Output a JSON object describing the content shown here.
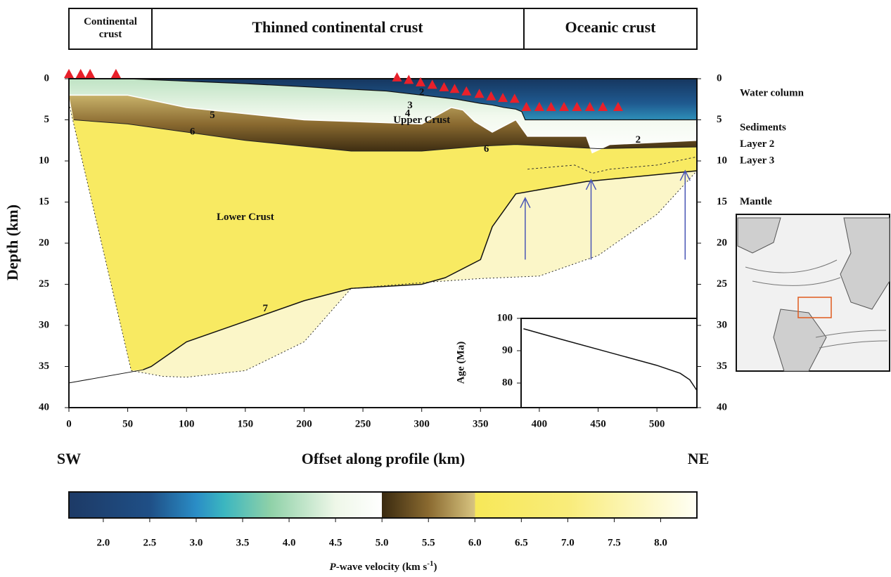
{
  "chart_data": {
    "type": "velocity-section",
    "domains": [
      "Continental crust",
      "Thinned continental crust",
      "Oceanic crust"
    ],
    "xlabel": "Offset along profile (km)",
    "ylabel": "Depth (km)",
    "left_end": "SW",
    "right_end": "NE",
    "xlim": [
      0,
      534
    ],
    "ylim": [
      0,
      40
    ],
    "xticks": [
      0,
      50,
      100,
      150,
      200,
      250,
      300,
      350,
      400,
      450,
      500
    ],
    "yticks": [
      0,
      5,
      10,
      15,
      20,
      25,
      30,
      35,
      40
    ],
    "layer_labels": [
      "Water column",
      "Sediments",
      "Layer 2",
      "Layer 3",
      "Mantle"
    ],
    "region_labels": [
      "Upper Crust",
      "Lower Crust"
    ],
    "contour_labels": [
      "2",
      "3",
      "4",
      "5",
      "6",
      "6",
      "7",
      "2"
    ],
    "seafloor": {
      "x": [
        50,
        150,
        270,
        330,
        350,
        360,
        370,
        380,
        385,
        388,
        534
      ],
      "depth": [
        0,
        0.6,
        1.5,
        2.5,
        3,
        3.2,
        3.5,
        3.7,
        4,
        5,
        5
      ]
    },
    "basement": {
      "x": [
        0,
        50,
        100,
        200,
        300,
        325,
        335,
        345,
        360,
        380,
        390,
        440,
        445,
        460,
        534
      ],
      "depth": [
        2,
        2,
        3.5,
        5,
        5.5,
        3.5,
        3.8,
        5.2,
        6.5,
        5,
        7,
        7,
        9,
        8,
        7.5
      ]
    },
    "contour6": {
      "x": [
        4,
        50,
        100,
        150,
        240,
        300,
        350,
        380,
        450,
        534
      ],
      "depth": [
        5,
        5.5,
        6.5,
        7.5,
        8.8,
        8.8,
        8.2,
        8,
        8.5,
        8.3
      ]
    },
    "layer3_top": {
      "x": [
        390,
        430,
        445,
        460,
        500,
        534
      ],
      "depth": [
        11,
        10.5,
        11.5,
        11,
        10.5,
        9.5
      ]
    },
    "moho": {
      "x": [
        63,
        70,
        100,
        150,
        200,
        240,
        300,
        320,
        350,
        360,
        380,
        388,
        440,
        534
      ],
      "depth": [
        35.4,
        35,
        32,
        29.5,
        27,
        25.5,
        25,
        24.2,
        22,
        18,
        14,
        13.8,
        12.5,
        11.2
      ]
    },
    "coverage_edge": {
      "x": [
        53,
        80,
        100,
        150,
        200,
        240,
        300,
        350,
        400,
        450,
        500,
        534
      ],
      "depth": [
        35.5,
        36.2,
        36.3,
        35.5,
        32,
        25.5,
        24.8,
        24.3,
        24,
        21.5,
        16.5,
        11.2
      ]
    },
    "west_edge": {
      "x": [
        0,
        53
      ],
      "depth": [
        3,
        35.5
      ]
    },
    "deep_line": {
      "x": [
        0,
        63
      ],
      "depth": [
        37,
        35.4
      ]
    },
    "stations": {
      "x": [
        0,
        10,
        18,
        40,
        279,
        289,
        299,
        309,
        319,
        328,
        338,
        349,
        359,
        369,
        379,
        389,
        400,
        410,
        421,
        432,
        443,
        454,
        467
      ],
      "depth": [
        0,
        0,
        0,
        0,
        0.5,
        0.8,
        1.1,
        1.4,
        1.7,
        1.9,
        2.2,
        2.5,
        2.8,
        3.0,
        3.1,
        4.1,
        4.1,
        4.1,
        4.1,
        4.1,
        4.1,
        4.1,
        4.1
      ]
    },
    "arrows": [
      {
        "x": 388,
        "from": 22,
        "to": 14.5
      },
      {
        "x": 444,
        "from": 22,
        "to": 12.3
      },
      {
        "x": 524,
        "from": 22,
        "to": 11.2
      }
    ],
    "inset": {
      "ylabel": "Age (Ma)",
      "xlim": [
        386,
        534
      ],
      "ylim": [
        72.4,
        100
      ],
      "yticks": [
        80,
        90,
        100
      ],
      "x": [
        388,
        420,
        460,
        500,
        520,
        528,
        534
      ],
      "age": [
        96.8,
        93.5,
        89.5,
        85.5,
        83,
        81,
        77.7
      ]
    },
    "colorbar": {
      "clim": [
        1.63,
        8.39
      ],
      "ticks": [
        {
          "value": 2,
          "label": "2.0"
        },
        {
          "value": 2.5,
          "label": "2.5"
        },
        {
          "value": 3,
          "label": "3.0"
        },
        {
          "value": 3.5,
          "label": "3.5"
        },
        {
          "value": 4,
          "label": "4.0"
        },
        {
          "value": 4.5,
          "label": "4.5"
        },
        {
          "value": 5,
          "label": "5.0"
        },
        {
          "value": 5.5,
          "label": "5.5"
        },
        {
          "value": 6,
          "label": "6.0"
        },
        {
          "value": 6.5,
          "label": "6.5"
        },
        {
          "value": 7,
          "label": "7.0"
        },
        {
          "value": 7.5,
          "label": "7.5"
        },
        {
          "value": 8,
          "label": "8.0"
        }
      ],
      "label_italic": "P",
      "label_text": "-wave velocity (km s",
      "label_sup": "-1",
      "label_end": ")",
      "colormap": [
        {
          "v": 1.63,
          "color": "#1d3a66"
        },
        {
          "v": 2.5,
          "color": "#1f4f86"
        },
        {
          "v": 3.0,
          "color": "#2a8dc6"
        },
        {
          "v": 3.3,
          "color": "#3bb6c0"
        },
        {
          "v": 3.8,
          "color": "#8fd1a8"
        },
        {
          "v": 4.5,
          "color": "#eef7e8"
        },
        {
          "v": 5.0,
          "color": "#ffffff"
        },
        {
          "v": 5.0,
          "color": "#3a2a10"
        },
        {
          "v": 5.5,
          "color": "#8a6a30"
        },
        {
          "v": 6.0,
          "color": "#d8c480"
        },
        {
          "v": 6.0,
          "color": "#f7e858"
        },
        {
          "v": 7.0,
          "color": "#f9ec7a"
        },
        {
          "v": 8.39,
          "color": "#fffff5"
        }
      ]
    }
  }
}
